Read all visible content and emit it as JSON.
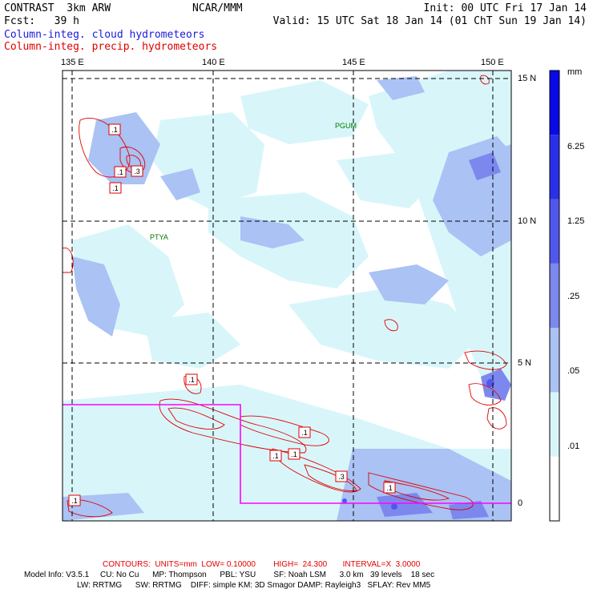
{
  "header": {
    "model_title": "CONTRAST  3km ARW",
    "center": "NCAR/MMM",
    "init": "Init: 00 UTC Fri 17 Jan 14",
    "fcst": "Fcst:   39 h",
    "valid": "Valid: 15 UTC Sat 18 Jan 14 (01 ChT Sun 19 Jan 14)",
    "field1": "Column-integ. cloud hydrometeors",
    "field2": "Column-integ. precip. hydrometeors"
  },
  "axes": {
    "lon_labels": [
      "135 E",
      "140 E",
      "145 E",
      "150 E"
    ],
    "lat_labels": [
      "15 N",
      "10 N",
      "5 N",
      "0"
    ]
  },
  "stations": [
    {
      "name": "PGUM",
      "lon": 144.8,
      "lat": 13.5
    },
    {
      "name": "PTYA",
      "lon": 138.1,
      "lat": 9.5
    }
  ],
  "contour_labels": [
    ".1",
    ".1",
    ".3",
    ".1",
    ".1",
    ".1",
    ".1",
    ".1",
    ".3",
    ".1",
    ".1"
  ],
  "colorbar": {
    "units": "mm",
    "levels": [
      "6.25",
      "1.25",
      ".25",
      ".05",
      ".01"
    ],
    "colors": [
      "#ffffff",
      "#d8f6fa",
      "#aac2f4",
      "#7c88ee",
      "#5058ec",
      "#2a30ea",
      "#0a0ae8"
    ]
  },
  "colors": {
    "cloud_text": "#1a1adc",
    "precip_contour": "#e00000",
    "domain_box": "#ff00ff",
    "station": "#007a00"
  },
  "footer": {
    "contours": "CONTOURS:  UNITS=mm  LOW= 0.10000        HIGH=  24.300       INTERVAL=X  3.0000",
    "model_info": "Model Info: V3.5.1     CU: No Cu      MP: Thompson      PBL: YSU        SF: Noah LSM      3.0 km   39 levels    18 sec",
    "model_info2": "LW: RRTMG      SW: RRTMG    DIFF: simple KM: 3D Smagor DAMP: Rayleigh3   SFLAY: Rev MM5"
  }
}
